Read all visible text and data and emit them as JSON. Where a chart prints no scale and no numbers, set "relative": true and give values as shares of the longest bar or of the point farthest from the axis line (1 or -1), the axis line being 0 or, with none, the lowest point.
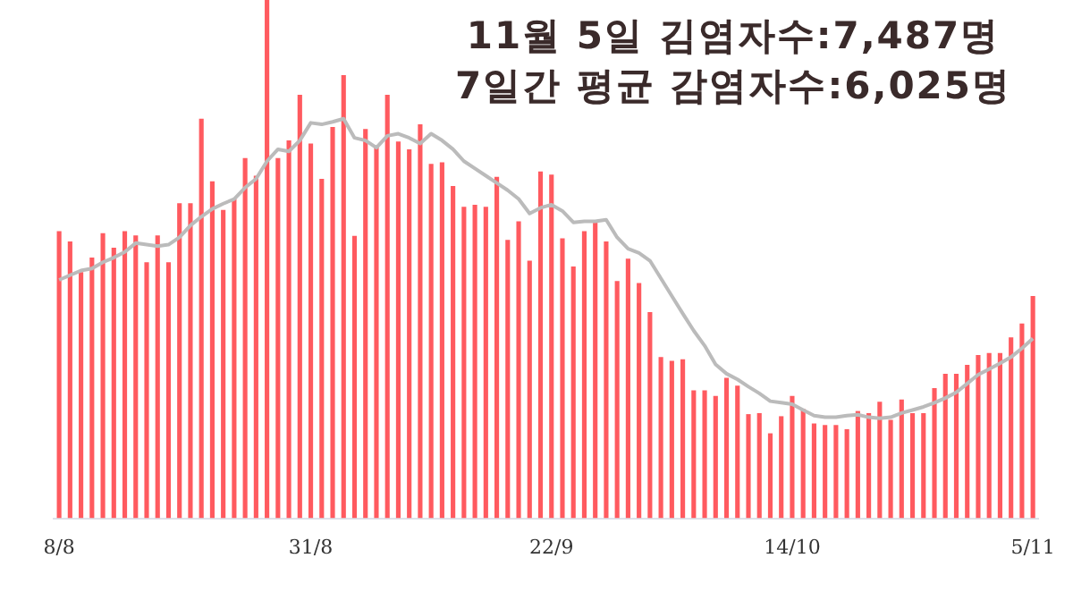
{
  "chart_data": {
    "type": "bar",
    "title": "11월 5일 김염자수:7,487명",
    "subtitle": "7일간 평균 감염자수:6,025명",
    "relative": true,
    "legend": false,
    "marker": "none",
    "categories": [
      "8/8",
      null,
      null,
      null,
      null,
      null,
      null,
      null,
      null,
      null,
      null,
      null,
      null,
      null,
      null,
      null,
      null,
      null,
      null,
      null,
      null,
      null,
      null,
      "31/8",
      null,
      null,
      null,
      null,
      null,
      null,
      null,
      null,
      null,
      null,
      null,
      null,
      null,
      null,
      null,
      null,
      null,
      null,
      null,
      null,
      null,
      "22/9",
      null,
      null,
      null,
      null,
      null,
      null,
      null,
      null,
      null,
      null,
      null,
      null,
      null,
      null,
      null,
      null,
      null,
      null,
      null,
      null,
      null,
      "14/10",
      null,
      null,
      null,
      null,
      null,
      null,
      null,
      null,
      null,
      null,
      null,
      null,
      null,
      null,
      null,
      null,
      null,
      null,
      null,
      null,
      null,
      "5/11"
    ],
    "series": [
      {
        "color": "#ff5a5f",
        "values": [
          0.554,
          0.534,
          0.475,
          0.503,
          0.55,
          0.522,
          0.554,
          0.546,
          0.494,
          0.546,
          0.494,
          0.608,
          0.608,
          0.771,
          0.65,
          0.595,
          0.616,
          0.695,
          0.661,
          1,
          0.695,
          0.729,
          0.817,
          0.723,
          0.655,
          0.755,
          0.855,
          0.545,
          0.751,
          0.718,
          0.817,
          0.727,
          0.712,
          0.76,
          0.684,
          0.687,
          0.641,
          0.601,
          0.605,
          0.601,
          0.659,
          0.537,
          0.573,
          0.497,
          0.669,
          0.663,
          0.54,
          0.486,
          0.554,
          0.571,
          0.534,
          0.458,
          0.501,
          0.454,
          0.398,
          0.311,
          0.304,
          0.307,
          0.247,
          0.247,
          0.236,
          0.271,
          0.256,
          0.201,
          0.203,
          0.164,
          0.197,
          0.236,
          0.211,
          0.183,
          0.18,
          0.18,
          0.172,
          0.207,
          0.203,
          0.225,
          0.19,
          0.229,
          0.203,
          0.203,
          0.251,
          0.279,
          0.279,
          0.296,
          0.315,
          0.319,
          0.319,
          0.349,
          0.376,
          0.429
        ]
      },
      {
        "type": "line",
        "color": "#bbbbbb",
        "values": [
          0.46,
          0.469,
          0.478,
          0.482,
          0.494,
          0.503,
          0.514,
          0.531,
          0.528,
          0.525,
          0.528,
          0.542,
          0.565,
          0.582,
          0.597,
          0.607,
          0.616,
          0.638,
          0.655,
          0.689,
          0.712,
          0.708,
          0.729,
          0.763,
          0.76,
          0.765,
          0.771,
          0.734,
          0.729,
          0.715,
          0.738,
          0.742,
          0.734,
          0.723,
          0.742,
          0.729,
          0.712,
          0.689,
          0.675,
          0.661,
          0.647,
          0.633,
          0.616,
          0.588,
          0.599,
          0.605,
          0.593,
          0.571,
          0.573,
          0.573,
          0.576,
          0.542,
          0.52,
          0.512,
          0.497,
          0.463,
          0.429,
          0.395,
          0.362,
          0.333,
          0.297,
          0.279,
          0.268,
          0.254,
          0.241,
          0.226,
          0.223,
          0.22,
          0.209,
          0.198,
          0.195,
          0.195,
          0.198,
          0.2,
          0.195,
          0.193,
          0.195,
          0.203,
          0.209,
          0.215,
          0.223,
          0.232,
          0.243,
          0.26,
          0.277,
          0.288,
          0.299,
          0.311,
          0.328,
          0.347
        ]
      }
    ]
  }
}
